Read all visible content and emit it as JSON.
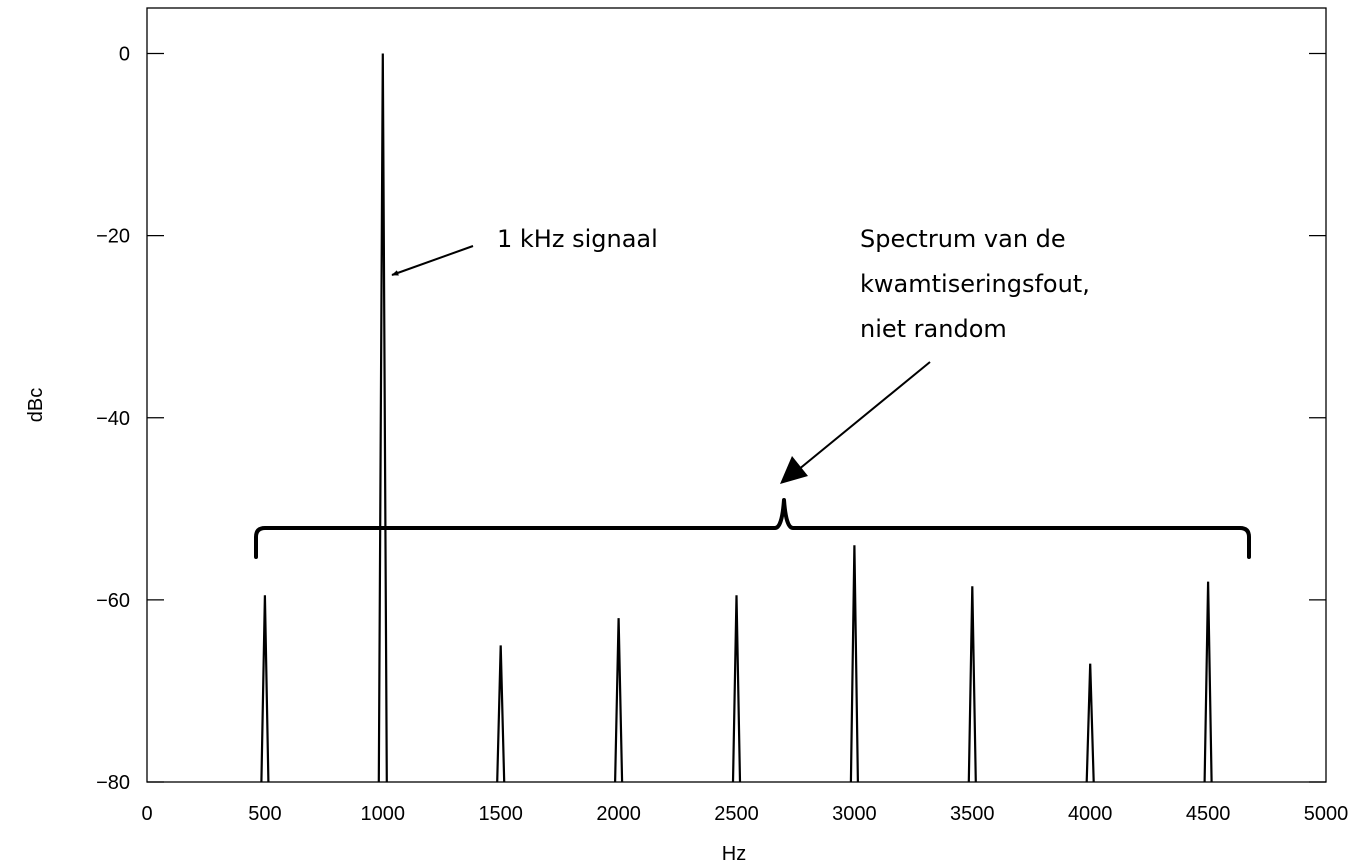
{
  "chart_data": {
    "type": "line",
    "xlabel": "Hz",
    "ylabel": "dBc",
    "xlim": [
      0,
      5000
    ],
    "ylim": [
      -80,
      5
    ],
    "x_ticks": [
      "0",
      "500",
      "1000",
      "1500",
      "2000",
      "2500",
      "3000",
      "3500",
      "4000",
      "4500",
      "5000"
    ],
    "y_ticks": [
      "0",
      "−20",
      "−40",
      "−60",
      "−80"
    ],
    "grid": false,
    "series": [
      {
        "peaks": [
          {
            "x": 500,
            "y": -59.5
          },
          {
            "x": 1000,
            "y": 0
          },
          {
            "x": 1500,
            "y": -65
          },
          {
            "x": 2000,
            "y": -62
          },
          {
            "x": 2500,
            "y": -59.5
          },
          {
            "x": 3000,
            "y": -54
          },
          {
            "x": 3500,
            "y": -58.5
          },
          {
            "x": 4000,
            "y": -67
          },
          {
            "x": 4500,
            "y": -58
          }
        ]
      }
    ],
    "annotations": {
      "signal": "1 kHz signaal",
      "error_spectrum": [
        "Spectrum van de",
        "kwamtiseringsfout,",
        "niet random"
      ]
    },
    "colors": {
      "line": "#000000",
      "axes": "#000000",
      "background": "#ffffff"
    }
  }
}
